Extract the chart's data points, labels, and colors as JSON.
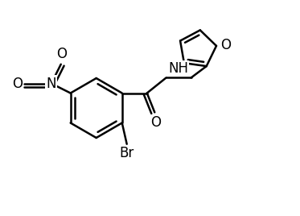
{
  "background_color": "#ffffff",
  "line_color": "#000000",
  "line_width": 1.8,
  "font_size": 11,
  "figsize": [
    3.73,
    2.68
  ],
  "dpi": 100,
  "xlim": [
    -0.1,
    1.3
  ],
  "ylim": [
    -0.05,
    1.05
  ]
}
